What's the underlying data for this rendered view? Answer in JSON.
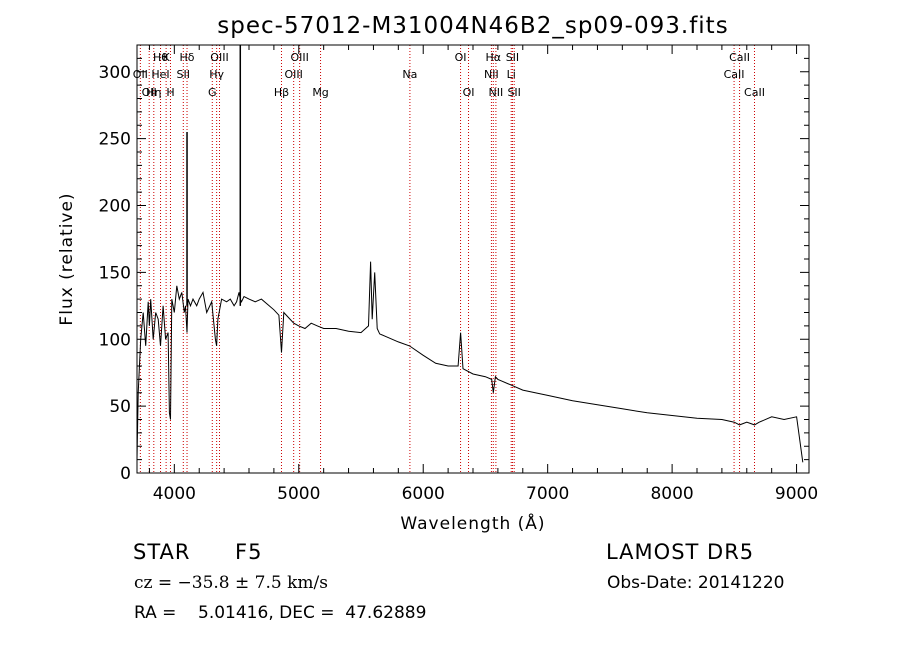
{
  "chart_data": {
    "type": "line",
    "title": "spec-57012-M31004N46B2_sp09-093.fits",
    "xlabel": "Wavelength (Å)",
    "ylabel": "Flux (relative)",
    "xlim": [
      3700,
      9100
    ],
    "ylim": [
      0,
      320
    ],
    "x_ticks": [
      4000,
      5000,
      6000,
      7000,
      8000,
      9000
    ],
    "y_ticks": [
      0,
      50,
      100,
      150,
      200,
      250,
      300
    ],
    "grid": false,
    "line_color": "#000000",
    "marker_color": "#cc0000",
    "series": [
      {
        "x": [
          3700,
          3710,
          3730,
          3750,
          3770,
          3790,
          3800,
          3810,
          3830,
          3850,
          3870,
          3889,
          3910,
          3930,
          3950,
          3960,
          3969,
          3980,
          4000,
          4020,
          4040,
          4060,
          4080,
          4090,
          4102,
          4110,
          4130,
          4150,
          4180,
          4200,
          4230,
          4260,
          4300,
          4330,
          4340,
          4350,
          4380,
          4420,
          4450,
          4480,
          4500,
          4520,
          4530,
          4540,
          4560,
          4600,
          4650,
          4700,
          4750,
          4800,
          4840,
          4861,
          4880,
          4920,
          4960,
          5000,
          5050,
          5100,
          5150,
          5200,
          5300,
          5400,
          5500,
          5560,
          5577,
          5590,
          5610,
          5630,
          5650,
          5700,
          5800,
          5890,
          6000,
          6100,
          6200,
          6280,
          6300,
          6320,
          6400,
          6500,
          6550,
          6563,
          6580,
          6600,
          6700,
          6800,
          6900,
          7000,
          7200,
          7400,
          7600,
          7800,
          8000,
          8200,
          8400,
          8500,
          8542,
          8600,
          8662,
          8700,
          8800,
          8900,
          9000,
          9050
        ],
        "y": [
          10,
          60,
          100,
          120,
          95,
          128,
          110,
          130,
          100,
          120,
          115,
          95,
          125,
          100,
          105,
          45,
          40,
          130,
          120,
          140,
          130,
          135,
          120,
          125,
          105,
          130,
          125,
          130,
          125,
          130,
          135,
          120,
          128,
          100,
          95,
          115,
          130,
          128,
          130,
          125,
          128,
          135,
          130,
          128,
          132,
          130,
          128,
          130,
          126,
          122,
          118,
          90,
          120,
          116,
          112,
          110,
          108,
          112,
          110,
          108,
          108,
          106,
          105,
          110,
          158,
          115,
          150,
          108,
          104,
          102,
          98,
          95,
          88,
          82,
          80,
          80,
          105,
          78,
          74,
          72,
          70,
          60,
          72,
          70,
          66,
          62,
          60,
          58,
          54,
          51,
          48,
          45,
          43,
          41,
          40,
          38,
          36,
          38,
          36,
          38,
          42,
          40,
          42,
          8
        ]
      }
    ],
    "spikes": [
      {
        "x": 4102,
        "y": 255
      },
      {
        "x": 4530,
        "y": 320
      }
    ],
    "lines": [
      {
        "x": 3727,
        "label": "OII",
        "row": 1
      },
      {
        "x": 3798,
        "label": "OII",
        "row": 2
      },
      {
        "x": 3835,
        "label": "Hη",
        "row": 2
      },
      {
        "x": 3889,
        "label": "Hθ",
        "row": 0
      },
      {
        "x": 3889,
        "label": "HeI",
        "row": 1
      },
      {
        "x": 3934,
        "label": "K",
        "row": 0
      },
      {
        "x": 3969,
        "label": "H",
        "row": 2
      },
      {
        "x": 4072,
        "label": "SII",
        "row": 1
      },
      {
        "x": 4102,
        "label": "Hδ",
        "row": 0
      },
      {
        "x": 4305,
        "label": "G",
        "row": 2
      },
      {
        "x": 4340,
        "label": "Hγ",
        "row": 1
      },
      {
        "x": 4363,
        "label": "OIII",
        "row": 0
      },
      {
        "x": 4861,
        "label": "Hβ",
        "row": 2
      },
      {
        "x": 4959,
        "label": "OIII",
        "row": 1
      },
      {
        "x": 5007,
        "label": "OIII",
        "row": 0
      },
      {
        "x": 5175,
        "label": "Mg",
        "row": 2
      },
      {
        "x": 5893,
        "label": "Na",
        "row": 1
      },
      {
        "x": 6300,
        "label": "OI",
        "row": 0
      },
      {
        "x": 6364,
        "label": "OI",
        "row": 2
      },
      {
        "x": 6548,
        "label": "NII",
        "row": 1
      },
      {
        "x": 6563,
        "label": "Hα",
        "row": 0
      },
      {
        "x": 6584,
        "label": "NII",
        "row": 2
      },
      {
        "x": 6707,
        "label": "Li",
        "row": 1
      },
      {
        "x": 6717,
        "label": "SII",
        "row": 0
      },
      {
        "x": 6731,
        "label": "SII",
        "row": 2
      },
      {
        "x": 8498,
        "label": "CaII",
        "row": 1
      },
      {
        "x": 8542,
        "label": "CaII",
        "row": 0
      },
      {
        "x": 8662,
        "label": "CaII",
        "row": 2
      }
    ]
  },
  "info": {
    "class": "STAR",
    "subclass": "F5",
    "survey": "LAMOST DR5",
    "cz": "cz = −35.8 ± 7.5 km/s",
    "obs_date": "Obs-Date: 20141220",
    "coords": "RA =    5.01416, DEC =  47.62889"
  }
}
